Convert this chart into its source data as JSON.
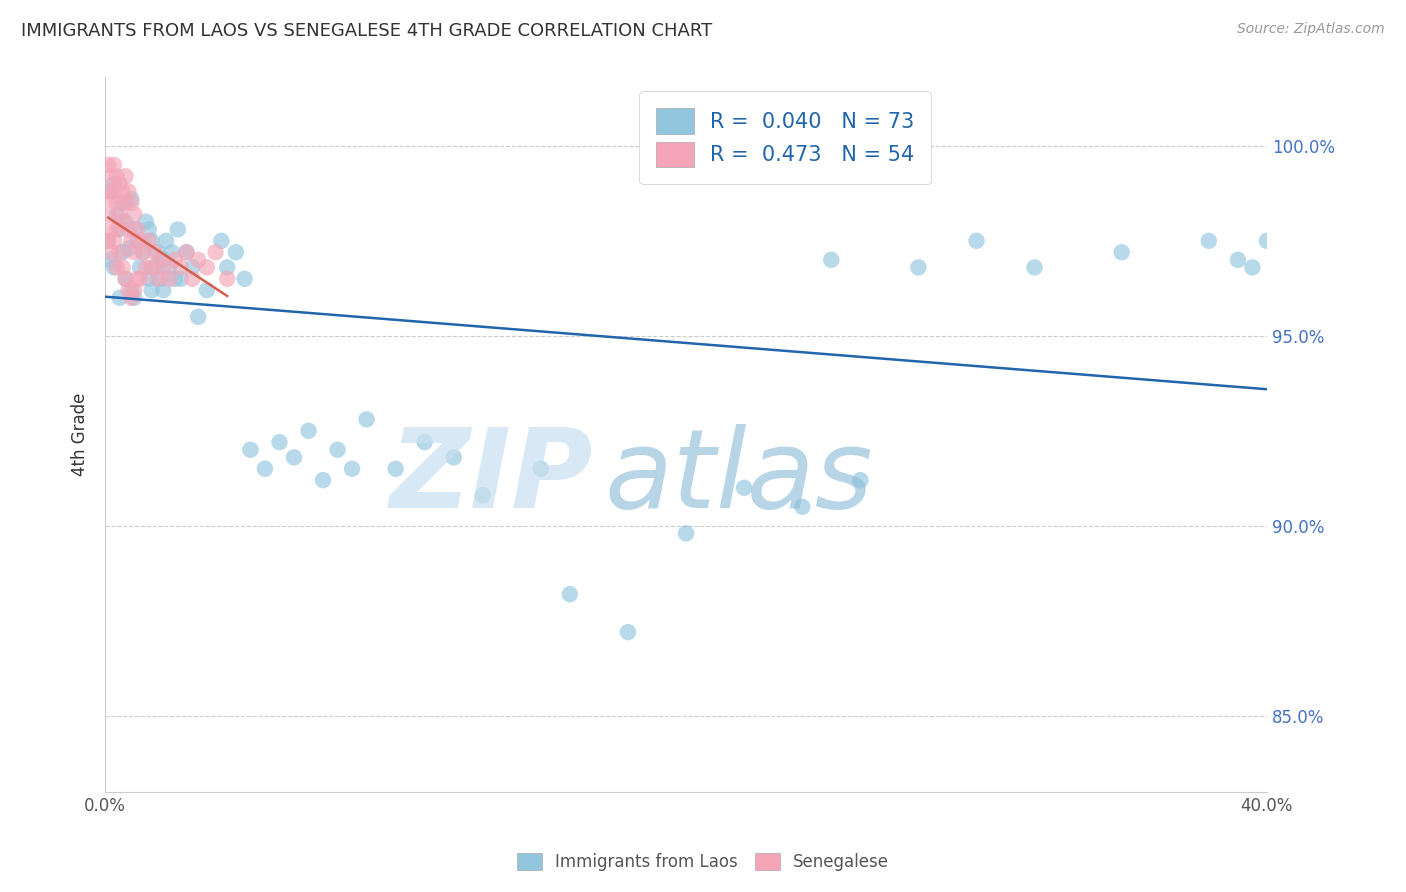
{
  "title": "IMMIGRANTS FROM LAOS VS SENEGALESE 4TH GRADE CORRELATION CHART",
  "source": "Source: ZipAtlas.com",
  "ylabel": "4th Grade",
  "y_ticks": [
    85.0,
    90.0,
    95.0,
    100.0
  ],
  "y_tick_labels": [
    "85.0%",
    "90.0%",
    "95.0%",
    "100.0%"
  ],
  "x_tick_positions": [
    0.0,
    0.05,
    0.1,
    0.15,
    0.2,
    0.25,
    0.3,
    0.35,
    0.4
  ],
  "x_tick_labels": [
    "0.0%",
    "",
    "",
    "",
    "",
    "",
    "",
    "",
    "40.0%"
  ],
  "legend_r1": "0.040",
  "legend_n1": "73",
  "legend_r2": "0.473",
  "legend_n2": "54",
  "blue_color": "#92c5de",
  "pink_color": "#f4a6b8",
  "blue_line_color": "#2166ac",
  "pink_line_color": "#d6604d",
  "xlim": [
    0.0,
    0.4
  ],
  "ylim": [
    83.0,
    101.8
  ],
  "blue_scatter_x": [
    0.001,
    0.002,
    0.002,
    0.003,
    0.003,
    0.004,
    0.005,
    0.005,
    0.006,
    0.006,
    0.007,
    0.007,
    0.008,
    0.009,
    0.009,
    0.01,
    0.01,
    0.011,
    0.012,
    0.013,
    0.014,
    0.015,
    0.015,
    0.016,
    0.016,
    0.017,
    0.018,
    0.019,
    0.02,
    0.02,
    0.021,
    0.022,
    0.023,
    0.024,
    0.025,
    0.026,
    0.028,
    0.03,
    0.032,
    0.035,
    0.04,
    0.042,
    0.045,
    0.048,
    0.05,
    0.055,
    0.06,
    0.065,
    0.07,
    0.075,
    0.08,
    0.085,
    0.09,
    0.1,
    0.11,
    0.12,
    0.13,
    0.15,
    0.16,
    0.18,
    0.2,
    0.22,
    0.24,
    0.26,
    0.28,
    0.3,
    0.32,
    0.35,
    0.38,
    0.39,
    0.395,
    0.4,
    0.25
  ],
  "blue_scatter_y": [
    97.5,
    98.8,
    97.0,
    99.0,
    96.8,
    98.2,
    97.8,
    96.0,
    98.5,
    97.2,
    98.0,
    96.5,
    97.3,
    98.6,
    96.2,
    97.8,
    96.0,
    97.5,
    96.8,
    97.2,
    98.0,
    96.5,
    97.8,
    96.2,
    97.5,
    96.8,
    97.2,
    96.5,
    97.0,
    96.2,
    97.5,
    96.8,
    97.2,
    96.5,
    97.8,
    96.5,
    97.2,
    96.8,
    95.5,
    96.2,
    97.5,
    96.8,
    97.2,
    96.5,
    92.0,
    91.5,
    92.2,
    91.8,
    92.5,
    91.2,
    92.0,
    91.5,
    92.8,
    91.5,
    92.2,
    91.8,
    90.8,
    91.5,
    88.2,
    87.2,
    89.8,
    91.0,
    90.5,
    91.2,
    96.8,
    97.5,
    96.8,
    97.2,
    97.5,
    97.0,
    96.8,
    97.5,
    97.0
  ],
  "pink_scatter_x": [
    0.001,
    0.001,
    0.001,
    0.001,
    0.002,
    0.002,
    0.002,
    0.002,
    0.003,
    0.003,
    0.003,
    0.004,
    0.004,
    0.004,
    0.004,
    0.005,
    0.005,
    0.005,
    0.006,
    0.006,
    0.006,
    0.007,
    0.007,
    0.007,
    0.008,
    0.008,
    0.008,
    0.009,
    0.009,
    0.009,
    0.01,
    0.01,
    0.01,
    0.011,
    0.011,
    0.012,
    0.012,
    0.013,
    0.014,
    0.015,
    0.016,
    0.017,
    0.018,
    0.019,
    0.02,
    0.022,
    0.024,
    0.026,
    0.028,
    0.03,
    0.032,
    0.035,
    0.038,
    0.042
  ],
  "pink_scatter_y": [
    99.5,
    98.8,
    98.2,
    97.5,
    99.2,
    98.6,
    97.8,
    97.2,
    99.5,
    98.8,
    97.5,
    99.2,
    98.5,
    97.8,
    96.8,
    99.0,
    98.2,
    97.2,
    98.8,
    98.0,
    96.8,
    99.2,
    98.5,
    96.5,
    98.8,
    97.8,
    96.2,
    98.5,
    97.5,
    96.0,
    98.2,
    97.2,
    96.2,
    97.8,
    96.5,
    97.5,
    96.5,
    97.2,
    96.8,
    97.5,
    96.8,
    97.2,
    96.5,
    97.0,
    96.8,
    96.5,
    97.0,
    96.8,
    97.2,
    96.5,
    97.0,
    96.8,
    97.2,
    96.5
  ]
}
